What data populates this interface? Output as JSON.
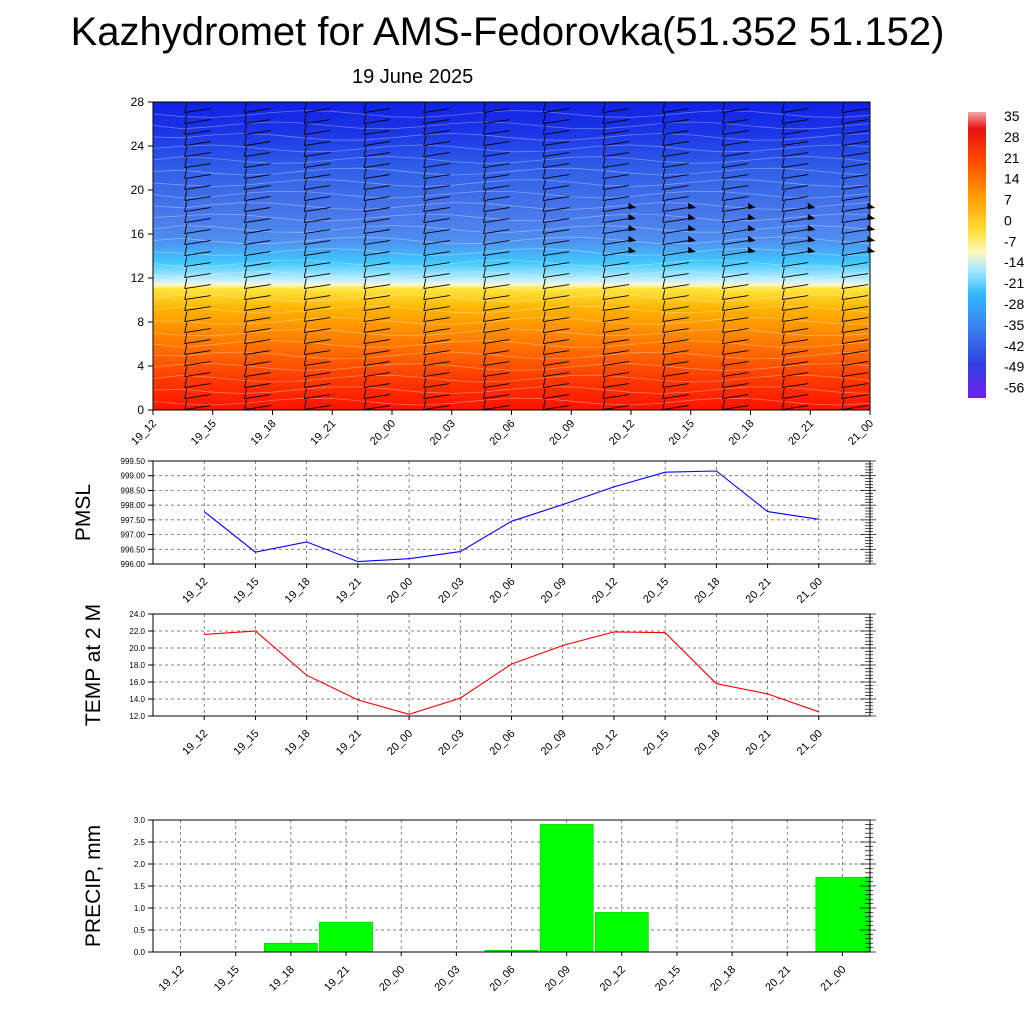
{
  "header": {
    "title": "Kazhydromet for AMS-Fedorovka(51.352 51.152)",
    "subtitle": "19 June 2025"
  },
  "time_labels": [
    "19_12",
    "19_15",
    "19_18",
    "19_21",
    "20_00",
    "20_03",
    "20_06",
    "20_09",
    "20_12",
    "20_15",
    "20_18",
    "20_21",
    "21_00"
  ],
  "chart_data": [
    {
      "id": "cross-section",
      "type": "heatmap",
      "title": "",
      "x": [
        "19_12",
        "19_15",
        "19_18",
        "19_21",
        "20_00",
        "20_03",
        "20_06",
        "20_09",
        "20_12",
        "20_15",
        "20_18",
        "20_21",
        "21_00"
      ],
      "y_ticks": [
        0,
        4,
        8,
        12,
        16,
        20,
        24,
        28
      ],
      "ylim": [
        0,
        28
      ],
      "colorbar_labels": [
        "35",
        "28",
        "21",
        "14",
        "7",
        "0",
        "-7",
        "-14",
        "-21",
        "-28",
        "-35",
        "-42",
        "-49",
        "-56"
      ],
      "colors": {
        "hot": "#ff1a00",
        "warm": "#ffaa00",
        "neutral": "#fff8a0",
        "cool": "#3fc6ff",
        "cold": "#2a4fe0",
        "coldest": "#6a1ff0"
      }
    },
    {
      "id": "pmsl",
      "type": "line",
      "ylabel": "PMSL",
      "x": [
        "19_12",
        "19_15",
        "19_18",
        "19_21",
        "20_00",
        "20_03",
        "20_06",
        "20_09",
        "20_12",
        "20_15",
        "20_18",
        "20_21",
        "21_00"
      ],
      "y_ticks": [
        "996.00",
        "996.50",
        "997.00",
        "997.50",
        "998.00",
        "998.50",
        "999.00",
        "999.50"
      ],
      "ylim": [
        996.0,
        999.5
      ],
      "series": [
        {
          "values": [
            997.78,
            996.4,
            996.75,
            996.08,
            996.18,
            996.42,
            997.45,
            998.02,
            998.62,
            999.12,
            999.16,
            997.78,
            997.52
          ]
        }
      ],
      "colors": {
        "line": "#0000ff"
      },
      "grid": true
    },
    {
      "id": "temp2m",
      "type": "line",
      "ylabel": "TEMP at 2 M",
      "x": [
        "19_12",
        "19_15",
        "19_18",
        "19_21",
        "20_00",
        "20_03",
        "20_06",
        "20_09",
        "20_12",
        "20_15",
        "20_18",
        "20_21",
        "21_00"
      ],
      "y_ticks": [
        "12.0",
        "14.0",
        "16.0",
        "18.0",
        "20.0",
        "22.0",
        "24.0"
      ],
      "ylim": [
        12.0,
        24.0
      ],
      "series": [
        {
          "values": [
            21.6,
            22.0,
            16.8,
            13.9,
            12.2,
            14.1,
            18.1,
            20.3,
            21.9,
            21.8,
            15.8,
            14.6,
            12.5
          ]
        }
      ],
      "colors": {
        "line": "#ff0000"
      },
      "grid": true
    },
    {
      "id": "precip",
      "type": "bar",
      "ylabel": "PRECIP, mm",
      "x": [
        "19_12",
        "19_15",
        "19_18",
        "19_21",
        "20_00",
        "20_03",
        "20_06",
        "20_09",
        "20_12",
        "20_15",
        "20_18",
        "20_21",
        "21_00"
      ],
      "y_ticks": [
        "0.0",
        "0.5",
        "1.0",
        "1.5",
        "2.0",
        "2.5",
        "3.0"
      ],
      "ylim": [
        0,
        3.0
      ],
      "series": [
        {
          "values": [
            0,
            0,
            0.2,
            0.68,
            0,
            0,
            0.04,
            2.9,
            0.9,
            0,
            0,
            0,
            1.7
          ]
        }
      ],
      "colors": {
        "bar": "#00ff00",
        "bar_edge": "#00cc00"
      },
      "grid": true
    }
  ]
}
